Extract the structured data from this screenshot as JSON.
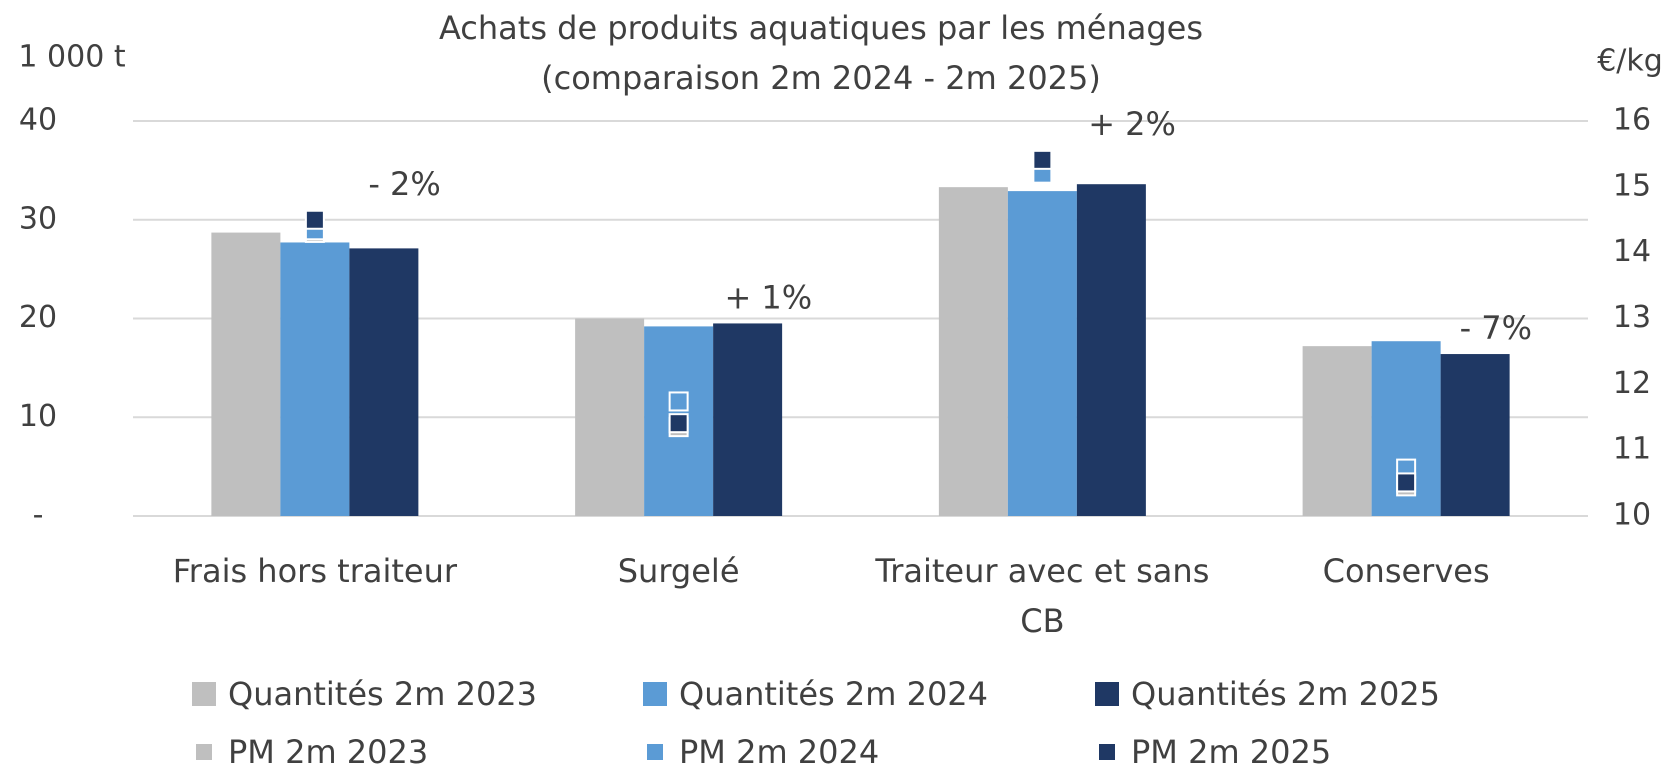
{
  "chart_data": {
    "type": "bar",
    "title": "Achats de produits aquatiques par les ménages",
    "subtitle": "(comparaison 2m 2024 - 2m 2025)",
    "y_label": "1 000 t",
    "y2_label": "€/kg",
    "categories": [
      "Frais hors traiteur",
      "Surgelé",
      "Traiteur avec et sans CB",
      "Conserves"
    ],
    "series": [
      {
        "name": "Quantités 2m 2023",
        "color": "#bfbfbf",
        "values": [
          28.7,
          20.0,
          33.3,
          17.2
        ]
      },
      {
        "name": "Quantités 2m 2024",
        "color": "#5b9bd5",
        "values": [
          27.7,
          19.2,
          32.9,
          17.7
        ]
      },
      {
        "name": "Quantités 2m 2025",
        "color": "#1f3864",
        "values": [
          27.1,
          19.5,
          33.6,
          16.4
        ]
      },
      {
        "name": "PM 2m 2023",
        "color": "#bfbfbf",
        "axis": "y2",
        "values": [
          14.3,
          11.35,
          15.22,
          10.45
        ]
      },
      {
        "name": "PM 2m 2024",
        "color": "#5b9bd5",
        "axis": "y2",
        "values": [
          14.34,
          11.74,
          15.2,
          10.72
        ]
      },
      {
        "name": "PM 2m 2025",
        "color": "#1f3864",
        "axis": "y2",
        "values": [
          14.5,
          11.41,
          15.41,
          10.51
        ]
      }
    ],
    "annotations": [
      "- 2%",
      "+ 1%",
      "+ 2%",
      "- 7%"
    ],
    "ylim": [
      0,
      40
    ],
    "yticks": [
      {
        "value": 0,
        "label": "-"
      },
      10,
      20,
      30,
      40
    ],
    "y2lim": [
      10,
      16
    ],
    "y2ticks": [
      10,
      11,
      12,
      13,
      14,
      15,
      16
    ],
    "grid": true
  }
}
